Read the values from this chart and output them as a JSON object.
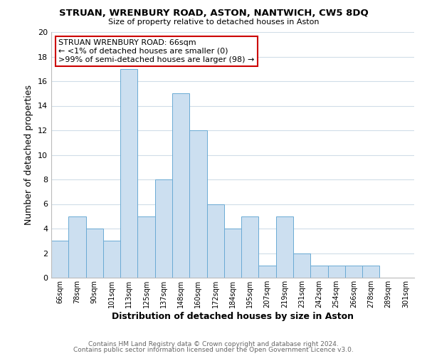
{
  "title": "STRUAN, WRENBURY ROAD, ASTON, NANTWICH, CW5 8DQ",
  "subtitle": "Size of property relative to detached houses in Aston",
  "xlabel": "Distribution of detached houses by size in Aston",
  "ylabel": "Number of detached properties",
  "bin_labels": [
    "66sqm",
    "78sqm",
    "90sqm",
    "101sqm",
    "113sqm",
    "125sqm",
    "137sqm",
    "148sqm",
    "160sqm",
    "172sqm",
    "184sqm",
    "195sqm",
    "207sqm",
    "219sqm",
    "231sqm",
    "242sqm",
    "254sqm",
    "266sqm",
    "278sqm",
    "289sqm",
    "301sqm"
  ],
  "bar_values": [
    3,
    5,
    4,
    3,
    17,
    5,
    8,
    15,
    12,
    6,
    4,
    5,
    1,
    5,
    2,
    1,
    1,
    1,
    1,
    0,
    0
  ],
  "bar_color": "#ccdff0",
  "bar_edge_color": "#6aaad4",
  "annotation_title": "STRUAN WRENBURY ROAD: 66sqm",
  "annotation_line1": "← <1% of detached houses are smaller (0)",
  "annotation_line2": ">99% of semi-detached houses are larger (98) →",
  "annotation_box_color": "#ffffff",
  "annotation_box_edge": "#cc0000",
  "ylim": [
    0,
    20
  ],
  "yticks": [
    0,
    2,
    4,
    6,
    8,
    10,
    12,
    14,
    16,
    18,
    20
  ],
  "footer_line1": "Contains HM Land Registry data © Crown copyright and database right 2024.",
  "footer_line2": "Contains public sector information licensed under the Open Government Licence v3.0.",
  "bg_color": "#ffffff",
  "grid_color": "#d0dde8"
}
